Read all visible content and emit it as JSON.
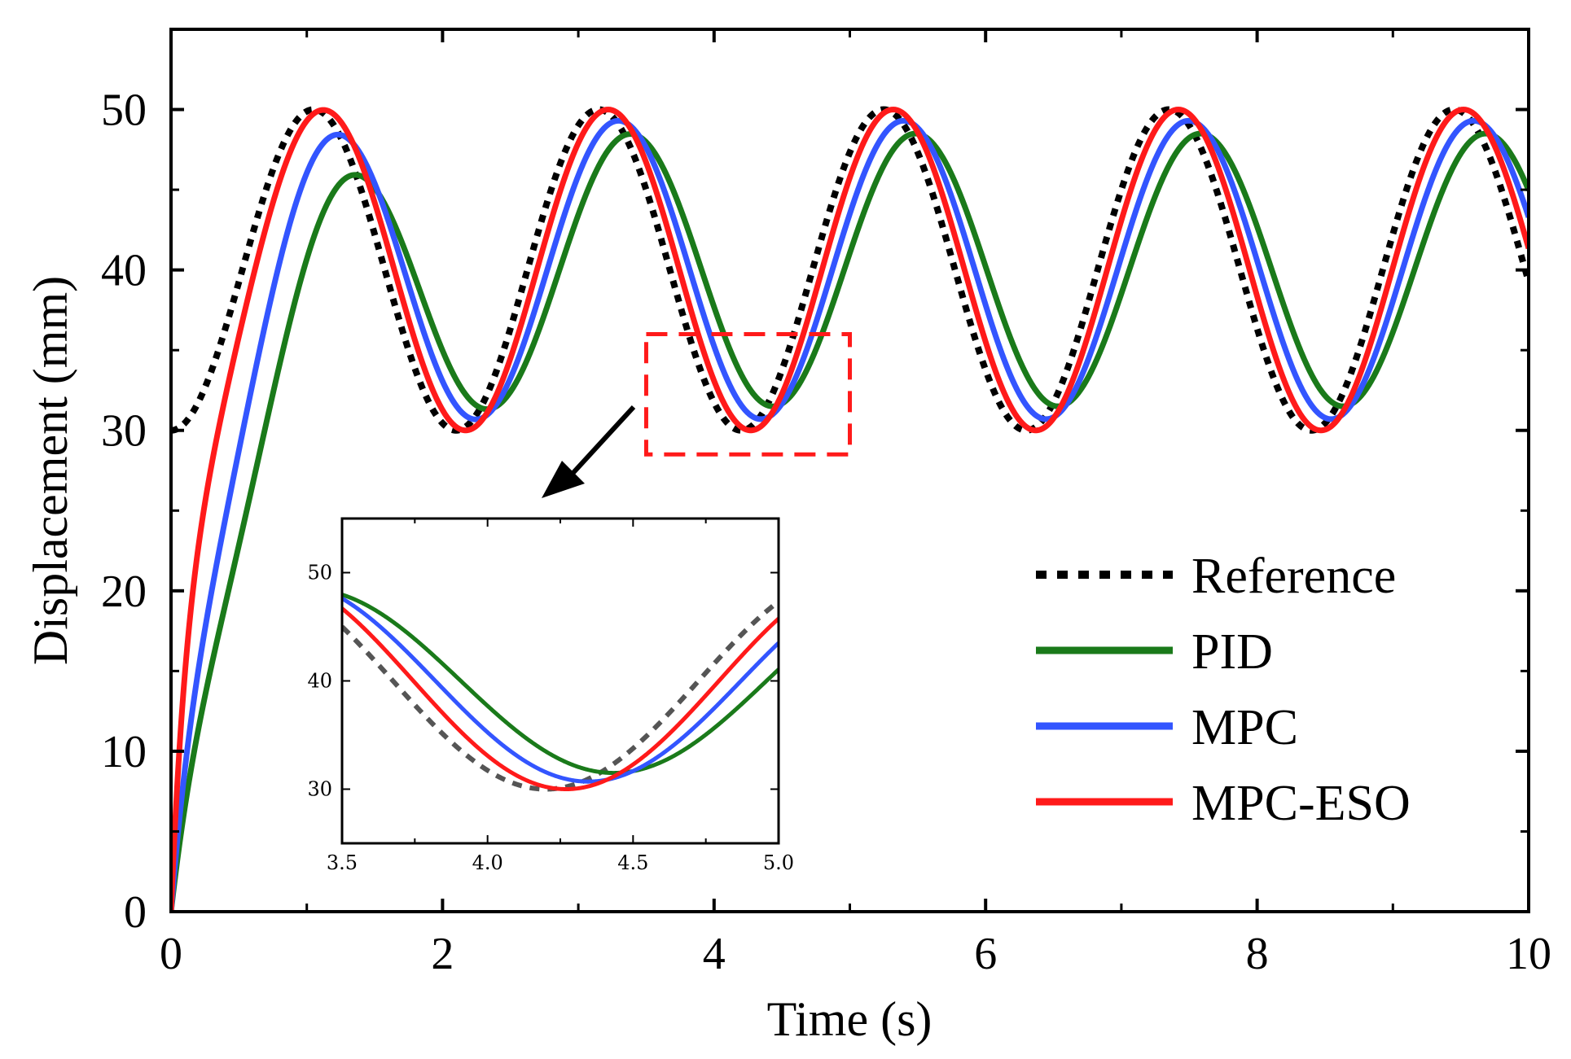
{
  "chart_data": [
    {
      "type": "line",
      "xlabel": "Time (s)",
      "ylabel": "Displacement (mm)",
      "xlim": [
        0,
        10
      ],
      "ylim": [
        0,
        55
      ],
      "xticks": [
        0,
        2,
        4,
        6,
        8,
        10
      ],
      "yticks": [
        0,
        10,
        20,
        30,
        40,
        50
      ],
      "grid": false,
      "legend": "center-right",
      "series": [
        {
          "name": "Reference",
          "color": "#000000",
          "style": "dotted",
          "model": {
            "offset": 40,
            "amplitude": 10,
            "period": 2.1,
            "phase_deg": 0,
            "initial": 30,
            "rise_tau": 0.0
          },
          "sample": {
            "x": [
              0,
              1.05,
              2.1,
              3.15,
              4.2,
              5.25,
              6.3,
              7.35,
              8.4,
              9.45
            ],
            "y": [
              30,
              50,
              30,
              50,
              30,
              50,
              30,
              50,
              30,
              50
            ]
          }
        },
        {
          "name": "PID",
          "color": "#1a7a1a",
          "style": "solid",
          "model": {
            "offset": 40,
            "amplitude": 8.5,
            "period": 2.1,
            "phase_deg": 40,
            "initial": 0,
            "rise_tau": 0.45
          },
          "sample": {
            "x": [
              0,
              0.5,
              1.3,
              2.35,
              3.4,
              4.45,
              5.5,
              6.55,
              7.6,
              8.65,
              9.7
            ],
            "y": [
              0,
              37,
              48.5,
              31.5,
              48.5,
              31.5,
              48.5,
              31.5,
              48.5,
              31.5,
              48.5
            ]
          }
        },
        {
          "name": "MPC",
          "color": "#3355ff",
          "style": "solid",
          "model": {
            "offset": 40,
            "amplitude": 9.3,
            "period": 2.1,
            "phase_deg": 25,
            "initial": 0,
            "rise_tau": 0.3
          },
          "sample": {
            "x": [
              0,
              0.5,
              1.2,
              2.25,
              3.3,
              4.35,
              5.4,
              6.45,
              7.5,
              8.55,
              9.6
            ],
            "y": [
              0,
              40,
              49.3,
              30.7,
              49.3,
              30.7,
              49.3,
              30.7,
              49.3,
              30.7,
              49.3
            ]
          }
        },
        {
          "name": "MPC-ESO",
          "color": "#ff1a1a",
          "style": "solid",
          "model": {
            "offset": 40,
            "amplitude": 10,
            "period": 2.1,
            "phase_deg": 12,
            "initial": 0,
            "rise_tau": 0.15
          },
          "sample": {
            "x": [
              0,
              0.5,
              1.12,
              2.17,
              3.22,
              4.27,
              5.32,
              6.37,
              7.42,
              8.47,
              9.52
            ],
            "y": [
              0,
              42,
              50,
              30,
              50,
              30,
              50,
              30,
              50,
              30,
              50
            ]
          }
        }
      ],
      "zoom_box": {
        "xlim": [
          3.5,
          5.0
        ],
        "ylim": [
          28.5,
          36
        ]
      },
      "arrow": {
        "from": [
          4.3,
          32.5
        ],
        "to": [
          3.7,
          26.5
        ]
      }
    },
    {
      "type": "line",
      "title": "",
      "xlim": [
        3.5,
        5.0
      ],
      "ylim": [
        25,
        55
      ],
      "xticks": [
        "3.5",
        "4.0",
        "4.5",
        "5.0"
      ],
      "yticks": [
        30,
        40,
        50
      ],
      "placement": "inset",
      "series_ref": [
        "Reference",
        "PID",
        "MPC",
        "MPC-ESO"
      ]
    }
  ]
}
